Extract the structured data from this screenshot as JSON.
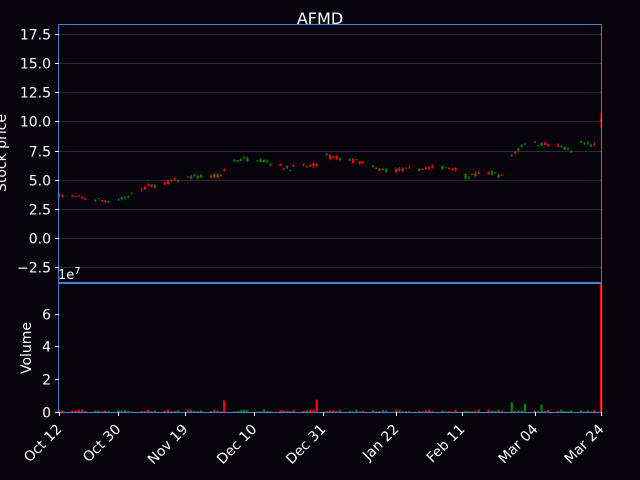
{
  "chart_data": [
    {
      "type": "candlestick",
      "title": "AFMD",
      "xlabel": "",
      "ylabel": "Stock price",
      "ylim": [
        -3.75,
        18.25
      ],
      "yticks": [
        "−2.5",
        "0.0",
        "2.5",
        "5.0",
        "7.5",
        "10.0",
        "12.5",
        "15.0",
        "17.5"
      ],
      "ytick_values": [
        -2.5,
        0,
        2.5,
        5,
        7.5,
        10,
        12.5,
        15,
        17.5
      ],
      "grid": true,
      "up_color": "#008000",
      "down_color": "#ff0000",
      "x_range": [
        "2023-10-12",
        "2024-03-24"
      ],
      "trend_anchors": [
        [
          "2023-10-12",
          3.7
        ],
        [
          "2023-10-20",
          3.4
        ],
        [
          "2023-10-27",
          3.2
        ],
        [
          "2023-11-01",
          3.4
        ],
        [
          "2023-11-06",
          4.3
        ],
        [
          "2023-11-13",
          4.7
        ],
        [
          "2023-11-20",
          5.2
        ],
        [
          "2023-11-30",
          5.3
        ],
        [
          "2023-12-02",
          6.5
        ],
        [
          "2023-12-10",
          6.9
        ],
        [
          "2023-12-20",
          6.0
        ],
        [
          "2023-12-28",
          6.2
        ],
        [
          "2024-01-01",
          7.0
        ],
        [
          "2024-01-10",
          6.6
        ],
        [
          "2024-01-16",
          5.9
        ],
        [
          "2024-01-22",
          5.8
        ],
        [
          "2024-02-01",
          6.0
        ],
        [
          "2024-02-08",
          6.1
        ],
        [
          "2024-02-12",
          5.3
        ],
        [
          "2024-02-20",
          5.6
        ],
        [
          "2024-02-23",
          5.3
        ],
        [
          "2024-02-25",
          6.8
        ],
        [
          "2024-03-01",
          8.2
        ],
        [
          "2024-03-10",
          8.0
        ],
        [
          "2024-03-15",
          7.4
        ],
        [
          "2024-03-17",
          8.2
        ],
        [
          "2024-03-22",
          7.9
        ],
        [
          "2024-03-24",
          10.0
        ]
      ]
    },
    {
      "type": "bar",
      "ylabel": "Volume",
      "multiplier": "1e7",
      "ylim": [
        0,
        7.8
      ],
      "yticks": [
        "0",
        "2",
        "4",
        "6"
      ],
      "ytick_values": [
        0,
        2,
        4,
        6
      ],
      "x_range": [
        "2023-10-12",
        "2024-03-24"
      ],
      "xticks": [
        "Oct 12",
        "Oct 30",
        "Nov 19",
        "Dec 10",
        "Dec 31",
        "Jan 22",
        "Feb 11",
        "Mar 04",
        "Mar 24"
      ],
      "xtick_dates": [
        "2023-10-12",
        "2023-10-30",
        "2023-11-19",
        "2023-12-10",
        "2023-12-31",
        "2024-01-22",
        "2024-02-11",
        "2024-03-04",
        "2024-03-24"
      ],
      "spikes": [
        [
          "2023-11-05",
          0.45
        ],
        [
          "2023-12-01",
          0.7
        ],
        [
          "2023-12-29",
          0.75
        ],
        [
          "2024-02-26",
          0.6
        ],
        [
          "2024-03-01",
          0.5
        ],
        [
          "2024-03-06",
          0.45
        ],
        [
          "2024-03-24",
          7.8
        ]
      ]
    }
  ]
}
